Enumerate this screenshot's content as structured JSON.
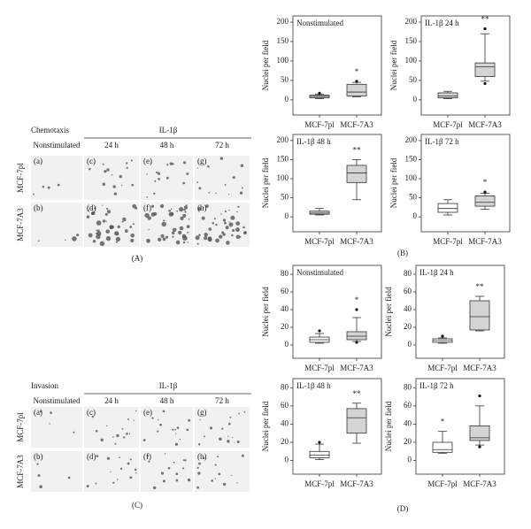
{
  "panel_a": {
    "title": "Chemotaxis",
    "stimulus": "IL-1β",
    "columns": [
      "Nonstimulated",
      "24 h",
      "48 h",
      "72 h"
    ],
    "rows": [
      "MCF-7pl",
      "MCF-7A3"
    ],
    "cells": [
      "(a)",
      "(c)",
      "(e)",
      "(g)",
      "(b)",
      "(d)",
      "(f)",
      "(h)"
    ],
    "label": "(A)"
  },
  "panel_c": {
    "title": "Invasion",
    "stimulus": "IL-1β",
    "columns": [
      "Nonstimulated",
      "24 h",
      "48 h",
      "72 h"
    ],
    "rows": [
      "MCF-7pl",
      "MCF-7A3"
    ],
    "cells": [
      "(a)",
      "(c)",
      "(e)",
      "(g)",
      "(b)",
      "(d)",
      "(f)",
      "(h)"
    ],
    "label": "(C)"
  },
  "panel_labels": {
    "b": "(B)",
    "d": "(D)"
  },
  "chart_data": [
    {
      "type": "box",
      "title": "Nonstimulated",
      "ylabel": "Nuclei per field",
      "categories": [
        "MCF-7pl",
        "MCF-7A3"
      ],
      "ylim": [
        -39,
        216
      ],
      "yticks": [
        0,
        50,
        100,
        150,
        200
      ],
      "box_colors": [
        "#d4d4d4",
        "#d4d4d4"
      ],
      "boxes": [
        {
          "whisker_low": 3,
          "q1": 5,
          "median": 9,
          "q3": 12,
          "whisker_high": 15,
          "outliers": [
            17
          ]
        },
        {
          "whisker_low": 8,
          "q1": 10,
          "median": 20,
          "q3": 40,
          "whisker_high": 45,
          "outliers": [
            48
          ]
        }
      ],
      "significance": [
        null,
        "*"
      ]
    },
    {
      "type": "box",
      "title": "IL-1β 24 h",
      "ylabel": "Nuclei per field",
      "categories": [
        "MCF-7pl",
        "MCF-7A3"
      ],
      "ylim": [
        -39,
        216
      ],
      "yticks": [
        0,
        50,
        100,
        150,
        200
      ],
      "box_colors": [
        "#d4d4d4",
        "#d4d4d4"
      ],
      "boxes": [
        {
          "whisker_low": 3,
          "q1": 5,
          "median": 10,
          "q3": 18,
          "whisker_high": 22,
          "outliers": []
        },
        {
          "whisker_low": 48,
          "q1": 60,
          "median": 85,
          "q3": 95,
          "whisker_high": 170,
          "outliers": [
            183,
            42
          ]
        }
      ],
      "significance": [
        null,
        "**"
      ]
    },
    {
      "type": "box",
      "title": "IL-1β 48 h",
      "ylabel": "Nuclei per field",
      "categories": [
        "MCF-7pl",
        "MCF-7A3"
      ],
      "ylim": [
        -39,
        216
      ],
      "yticks": [
        0,
        50,
        100,
        150,
        200
      ],
      "box_colors": [
        "#d4d4d4",
        "#d4d4d4"
      ],
      "boxes": [
        {
          "whisker_low": 5,
          "q1": 7,
          "median": 10,
          "q3": 15,
          "whisker_high": 22,
          "outliers": []
        },
        {
          "whisker_low": 45,
          "q1": 90,
          "median": 115,
          "q3": 135,
          "whisker_high": 150,
          "outliers": []
        }
      ],
      "significance": [
        null,
        "**"
      ]
    },
    {
      "type": "box",
      "title": "IL-1β 72 h",
      "ylabel": "Nuclei per field",
      "categories": [
        "MCF-7pl",
        "MCF-7A3"
      ],
      "ylim": [
        -39,
        216
      ],
      "yticks": [
        0,
        50,
        100,
        150,
        200
      ],
      "box_colors": [
        "#ffffff",
        "#d4d4d4"
      ],
      "boxes": [
        {
          "whisker_low": 5,
          "q1": 12,
          "median": 22,
          "q3": 35,
          "whisker_high": 45,
          "outliers": []
        },
        {
          "whisker_low": 20,
          "q1": 28,
          "median": 38,
          "q3": 55,
          "whisker_high": 62,
          "outliers": [
            65
          ]
        }
      ],
      "significance": [
        null,
        "*"
      ]
    },
    {
      "type": "box",
      "title": "Nonstimulated",
      "ylabel": "Nuclei per field",
      "categories": [
        "MCF-7pl",
        "MCF-7A3"
      ],
      "ylim": [
        -15,
        90
      ],
      "yticks": [
        0,
        20,
        40,
        60,
        80
      ],
      "box_colors": [
        "#ffffff",
        "#d4d4d4"
      ],
      "boxes": [
        {
          "whisker_low": 2,
          "q1": 3,
          "median": 6,
          "q3": 9,
          "whisker_high": 13,
          "outliers": [
            16
          ]
        },
        {
          "whisker_low": 4,
          "q1": 6,
          "median": 10,
          "q3": 15,
          "whisker_high": 31,
          "outliers": [
            40,
            3
          ]
        }
      ],
      "significance": [
        null,
        "*"
      ]
    },
    {
      "type": "box",
      "title": "IL-1β 24 h",
      "ylabel": "Nuclei per field",
      "categories": [
        "MCF-7pl",
        "MCF-7A3"
      ],
      "ylim": [
        -15,
        90
      ],
      "yticks": [
        0,
        20,
        40,
        60,
        80
      ],
      "box_colors": [
        "#ffffff",
        "#d4d4d4"
      ],
      "boxes": [
        {
          "whisker_low": 2,
          "q1": 3,
          "median": 5,
          "q3": 7,
          "whisker_high": 8,
          "outliers": [
            10
          ]
        },
        {
          "whisker_low": 16,
          "q1": 17,
          "median": 32,
          "q3": 50,
          "whisker_high": 55,
          "outliers": []
        }
      ],
      "significance": [
        null,
        "**"
      ]
    },
    {
      "type": "box",
      "title": "IL-1β 48 h",
      "ylabel": "Nuclei per field",
      "categories": [
        "MCF-7pl",
        "MCF-7A3"
      ],
      "ylim": [
        -15,
        90
      ],
      "yticks": [
        0,
        20,
        40,
        60,
        80
      ],
      "box_colors": [
        "#ffffff",
        "#d4d4d4"
      ],
      "boxes": [
        {
          "whisker_low": 1,
          "q1": 3,
          "median": 6,
          "q3": 10,
          "whisker_high": 18,
          "outliers": [
            20
          ]
        },
        {
          "whisker_low": 19,
          "q1": 30,
          "median": 47,
          "q3": 57,
          "whisker_high": 63,
          "outliers": []
        }
      ],
      "significance": [
        null,
        "**"
      ]
    },
    {
      "type": "box",
      "title": "IL-1β 72 h",
      "ylabel": "Nuclei per field",
      "categories": [
        "MCF-7pl",
        "MCF-7A3"
      ],
      "ylim": [
        -15,
        90
      ],
      "yticks": [
        0,
        20,
        40,
        60,
        80
      ],
      "box_colors": [
        "#ffffff",
        "#d4d4d4"
      ],
      "boxes": [
        {
          "whisker_low": 8,
          "q1": 9,
          "median": 12,
          "q3": 20,
          "whisker_high": 32,
          "outliers": []
        },
        {
          "whisker_low": 17,
          "q1": 22,
          "median": 25,
          "q3": 38,
          "whisker_high": 60,
          "outliers": [
            71,
            15
          ]
        }
      ],
      "significance": [
        "*",
        null
      ]
    }
  ]
}
